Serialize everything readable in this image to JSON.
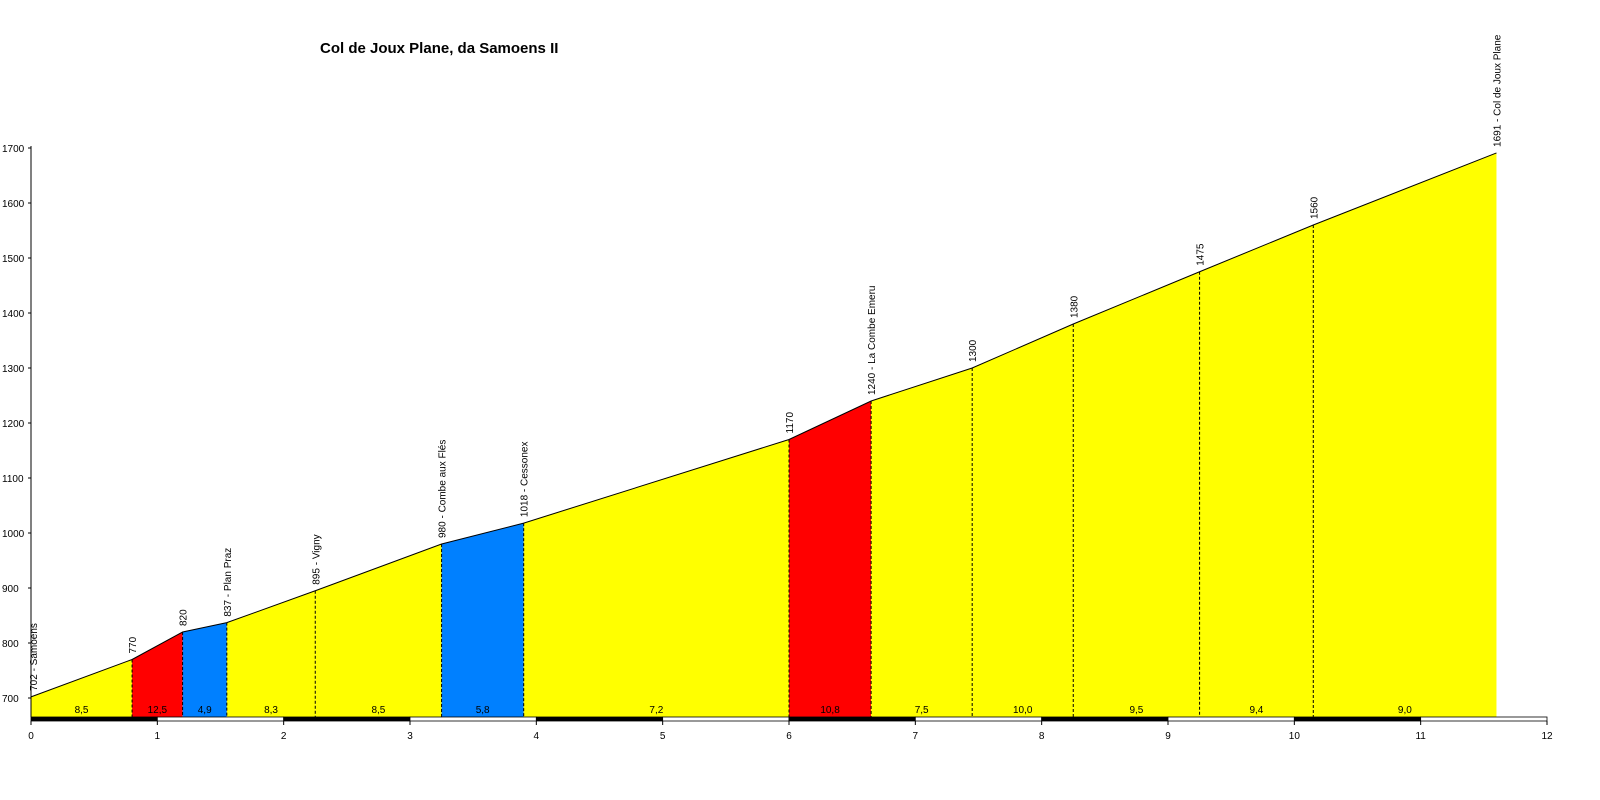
{
  "chart_data": {
    "type": "area",
    "title": "Col de Joux Plane, da Samoens II",
    "xlabel": "",
    "ylabel": "",
    "xlim": [
      0,
      12
    ],
    "ylim": [
      660,
      1700
    ],
    "x_ticks": [
      "0",
      "1",
      "2",
      "3",
      "4",
      "5",
      "6",
      "7",
      "8",
      "9",
      "10",
      "11",
      "12"
    ],
    "y_ticks": [
      "700",
      "800",
      "900",
      "1000",
      "1100",
      "1200",
      "1300",
      "1400",
      "1500",
      "1600",
      "1700"
    ],
    "points": [
      {
        "km": 0.0,
        "alt": 702,
        "label": "702 - Samoens"
      },
      {
        "km": 0.8,
        "alt": 770,
        "label": "770"
      },
      {
        "km": 1.2,
        "alt": 820,
        "label": "820"
      },
      {
        "km": 1.55,
        "alt": 837,
        "label": "837 - Plan Praz"
      },
      {
        "km": 2.25,
        "alt": 895,
        "label": "895 - Vigny"
      },
      {
        "km": 3.25,
        "alt": 980,
        "label": "980 - Combe aux Flés"
      },
      {
        "km": 3.9,
        "alt": 1018,
        "label": "1018 - Cessonex"
      },
      {
        "km": 6.0,
        "alt": 1170,
        "label": "1170"
      },
      {
        "km": 6.65,
        "alt": 1240,
        "label": "1240 - La Combe Emeru"
      },
      {
        "km": 7.45,
        "alt": 1300,
        "label": "1300"
      },
      {
        "km": 8.25,
        "alt": 1380,
        "label": "1380"
      },
      {
        "km": 9.25,
        "alt": 1475,
        "label": "1475"
      },
      {
        "km": 10.15,
        "alt": 1560,
        "label": "1560"
      },
      {
        "km": 11.6,
        "alt": 1691,
        "label": "1691 - Col de Joux Plane"
      }
    ],
    "segments": [
      {
        "grade": "8,5",
        "color": "#ffff00"
      },
      {
        "grade": "12,5",
        "color": "#ff0000"
      },
      {
        "grade": "4,9",
        "color": "#0080ff"
      },
      {
        "grade": "8,3",
        "color": "#ffff00"
      },
      {
        "grade": "8,5",
        "color": "#ffff00"
      },
      {
        "grade": "5,8",
        "color": "#0080ff"
      },
      {
        "grade": "7,2",
        "color": "#ffff00"
      },
      {
        "grade": "10,8",
        "color": "#ff0000"
      },
      {
        "grade": "7,5",
        "color": "#ffff00"
      },
      {
        "grade": "10,0",
        "color": "#ffff00"
      },
      {
        "grade": "9,5",
        "color": "#ffff00"
      },
      {
        "grade": "9,4",
        "color": "#ffff00"
      },
      {
        "grade": "9,0",
        "color": "#ffff00"
      }
    ],
    "grid": false,
    "legend": "none"
  }
}
